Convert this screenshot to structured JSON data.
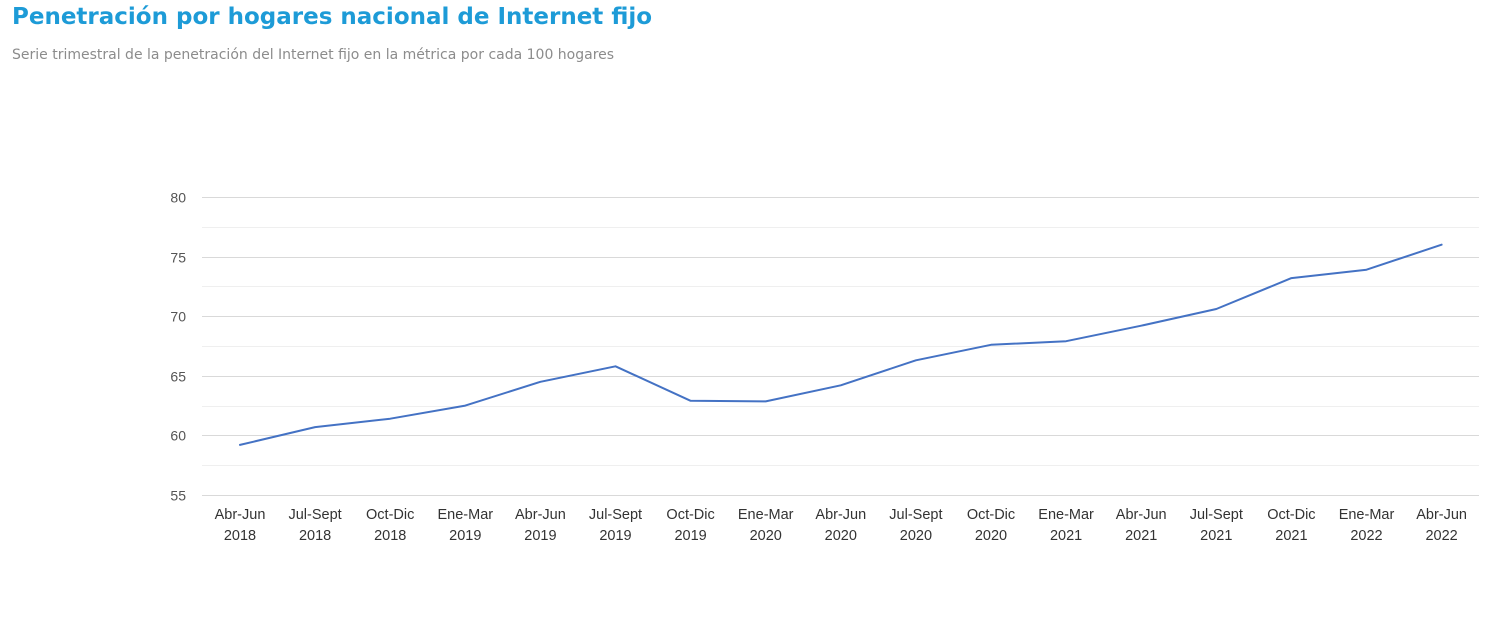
{
  "header": {
    "title": "Penetración por hogares nacional de Internet fijo",
    "subtitle": "Serie trimestral de la penetración del Internet fijo en la métrica por cada 100 hogares"
  },
  "colors": {
    "title": "#1d9bd7",
    "line": "#4472c4",
    "grid": "#d9d9d9",
    "minor_grid": "#efefef"
  },
  "chart_data": {
    "type": "line",
    "categories": [
      [
        "Abr-Jun",
        "2018"
      ],
      [
        "Jul-Sept",
        "2018"
      ],
      [
        "Oct-Dic",
        "2018"
      ],
      [
        "Ene-Mar",
        "2019"
      ],
      [
        "Abr-Jun",
        "2019"
      ],
      [
        "Jul-Sept",
        "2019"
      ],
      [
        "Oct-Dic",
        "2019"
      ],
      [
        "Ene-Mar",
        "2020"
      ],
      [
        "Abr-Jun",
        "2020"
      ],
      [
        "Jul-Sept",
        "2020"
      ],
      [
        "Oct-Dic",
        "2020"
      ],
      [
        "Ene-Mar",
        "2021"
      ],
      [
        "Abr-Jun",
        "2021"
      ],
      [
        "Jul-Sept",
        "2021"
      ],
      [
        "Oct-Dic",
        "2021"
      ],
      [
        "Ene-Mar",
        "2022"
      ],
      [
        "Abr-Jun",
        "2022"
      ]
    ],
    "values": [
      59.2,
      60.7,
      61.4,
      62.5,
      64.5,
      65.8,
      62.9,
      62.85,
      64.2,
      66.3,
      67.6,
      67.9,
      69.2,
      70.6,
      73.2,
      73.9,
      76.0
    ],
    "ylim": [
      55,
      80
    ],
    "yticks": [
      55,
      60,
      65,
      70,
      75,
      80
    ],
    "minor_yticks": [
      57.5,
      62.5,
      67.5,
      72.5,
      77.5
    ],
    "grid": true,
    "legend": "none"
  }
}
